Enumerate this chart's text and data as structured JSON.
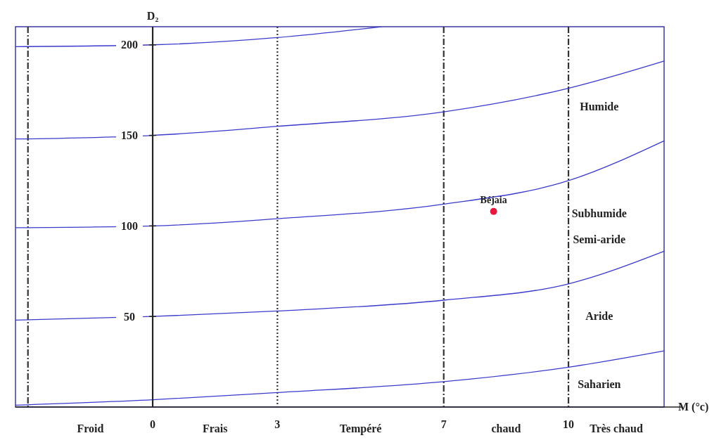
{
  "chart_data": {
    "type": "line",
    "xlabel": "M (°c)",
    "ylabel": "D₂",
    "xlim": [
      -3.3,
      12.3
    ],
    "ylim": [
      0,
      210
    ],
    "xticks": [
      0,
      3,
      7,
      10
    ],
    "yticks": [
      50,
      100,
      150,
      200
    ],
    "grid": false,
    "series": [
      {
        "color": "#3a3acc",
        "x": [
          -3.3,
          0,
          3,
          5.5
        ],
        "values": [
          199,
          200,
          204,
          210
        ]
      },
      {
        "color": "#3a3acc",
        "x": [
          -3.3,
          0,
          3,
          7,
          10,
          12.3
        ],
        "values": [
          148,
          150,
          155,
          163,
          176,
          191
        ]
      },
      {
        "color": "#3a3acc",
        "x": [
          -3.3,
          0,
          3,
          7,
          10,
          12.3
        ],
        "values": [
          99,
          100,
          104,
          112,
          125,
          147
        ]
      },
      {
        "color": "#3a3acc",
        "x": [
          -3.3,
          0,
          3,
          7,
          10,
          12.3
        ],
        "values": [
          48,
          50,
          53,
          59,
          68,
          86
        ]
      },
      {
        "color": "#3a3acc",
        "x": [
          -3.3,
          0,
          3,
          7,
          10,
          12.3
        ],
        "values": [
          1,
          4,
          8,
          14,
          22,
          31
        ]
      },
      {
        "type": "scatter",
        "name": "Béjaia",
        "color": "#e8163c",
        "marker": "circle",
        "x": [
          8.2
        ],
        "values": [
          108
        ]
      }
    ],
    "ref_lines": [
      {
        "axis": "x",
        "value": -3,
        "line_style": "dashdot",
        "color": "#333333"
      },
      {
        "axis": "x",
        "value": 3,
        "line_style": "dotted",
        "color": "#333333"
      },
      {
        "axis": "x",
        "value": 7,
        "line_style": "dashdot",
        "color": "#333333"
      },
      {
        "axis": "x",
        "value": 10,
        "line_style": "dashdot",
        "color": "#333333"
      }
    ],
    "annotations": [
      "Humide",
      "Subhumide",
      "Semi-aride",
      "Aride",
      "Saharien",
      "Froid",
      "Frais",
      "Tempéré",
      "chaud",
      "Très chaud"
    ]
  }
}
